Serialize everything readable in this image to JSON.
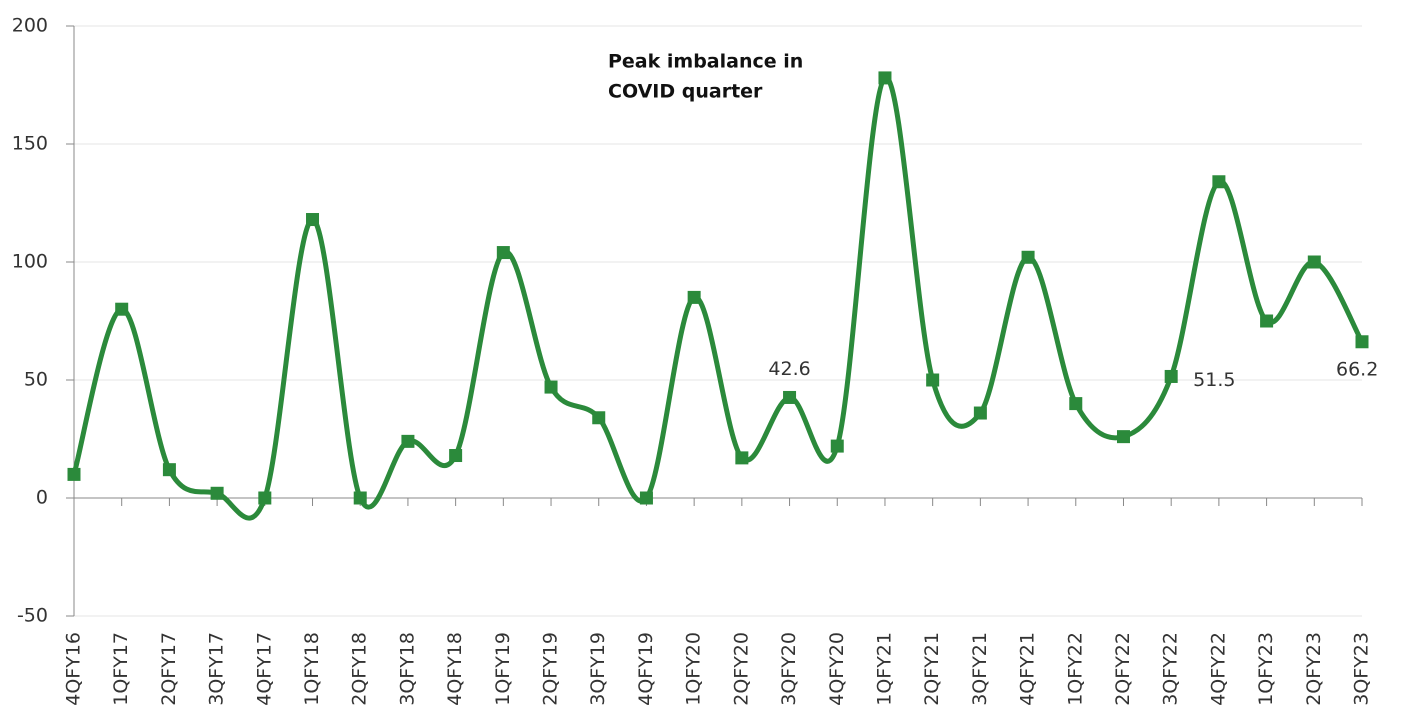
{
  "chart_data": {
    "type": "line",
    "annotation": [
      "Peak imbalance in",
      "COVID quarter"
    ],
    "categories": [
      "4QFY16",
      "1QFY17",
      "2QFY17",
      "3QFY17",
      "4QFY17",
      "1QFY18",
      "2QFY18",
      "3QFY18",
      "4QFY18",
      "1QFY19",
      "2QFY19",
      "3QFY19",
      "4QFY19",
      "1QFY20",
      "2QFY20",
      "3QFY20",
      "4QFY20",
      "1QFY21",
      "2QFY21",
      "3QFY21",
      "4QFY21",
      "1QFY22",
      "2QFY22",
      "3QFY22",
      "4QFY22",
      "1QFY23",
      "2QFY23",
      "3QFY23"
    ],
    "series": [
      {
        "color": "#2b8a3b",
        "values": [
          10,
          80,
          12,
          2,
          0,
          118,
          0,
          24,
          18,
          104,
          47,
          34,
          0,
          85,
          17,
          42.6,
          22,
          178,
          50,
          36,
          102,
          40,
          26,
          51.5,
          134,
          75,
          100,
          66.2
        ],
        "value_labels": [
          null,
          null,
          null,
          null,
          null,
          null,
          null,
          null,
          null,
          null,
          null,
          null,
          null,
          null,
          null,
          "42.6",
          null,
          null,
          null,
          null,
          null,
          null,
          null,
          "51.5",
          null,
          null,
          null,
          "66.2"
        ]
      }
    ],
    "ylim": [
      -50,
      200
    ],
    "yticks": [
      -50,
      0,
      50,
      100,
      150,
      200
    ],
    "grid": true,
    "smooth": true
  }
}
